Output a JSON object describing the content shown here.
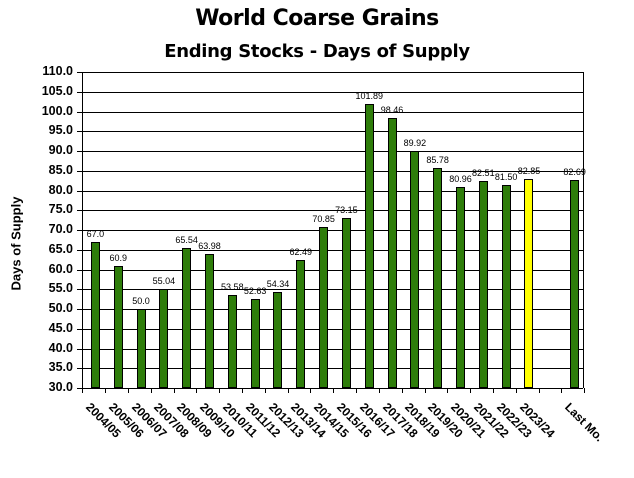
{
  "chart_data": {
    "type": "bar",
    "title": "World Coarse Grains",
    "subtitle": "Ending Stocks - Days of Supply",
    "xlabel": "",
    "ylabel": "Days of Supply",
    "ylim": [
      30.0,
      110.0
    ],
    "ytick_step": 5.0,
    "yticks": [
      "110.0",
      "105.0",
      "100.0",
      "95.0",
      "90.0",
      "85.0",
      "80.0",
      "75.0",
      "70.0",
      "65.0",
      "60.0",
      "55.0",
      "50.0",
      "45.0",
      "40.0",
      "35.0",
      "30.0"
    ],
    "grid": true,
    "legend": "none",
    "categories": [
      "2004/05",
      "2005/06",
      "2006/07",
      "2007/08",
      "2008/09",
      "2009/10",
      "2010/11",
      "2011/12",
      "2012/13",
      "2013/14",
      "2014/15",
      "2015/16",
      "2016/17",
      "2017/18",
      "2018/19",
      "2019/20",
      "2020/21",
      "2021/22",
      "2022/23",
      "2023/24",
      "",
      "Last Mo."
    ],
    "values": [
      67.0,
      60.9,
      50.0,
      55.04,
      65.54,
      63.98,
      53.58,
      52.63,
      54.34,
      62.49,
      70.85,
      73.15,
      101.89,
      98.46,
      89.92,
      85.78,
      80.96,
      82.51,
      81.5,
      82.85,
      null,
      82.69
    ],
    "value_labels": [
      "67.0",
      "60.9",
      "50.0",
      "55.04",
      "65.54",
      "63.98",
      "53.58",
      "52.63",
      "54.34",
      "62.49",
      "70.85",
      "73.15",
      "101.89",
      "98.46",
      "89.92",
      "85.78",
      "80.96",
      "82.51",
      "81.50",
      "82.85",
      "",
      "82.69"
    ],
    "highlight_index": 19,
    "colors": {
      "bar": "#2e7d0a",
      "highlight": "#ffff00",
      "outline": "#000000"
    }
  }
}
